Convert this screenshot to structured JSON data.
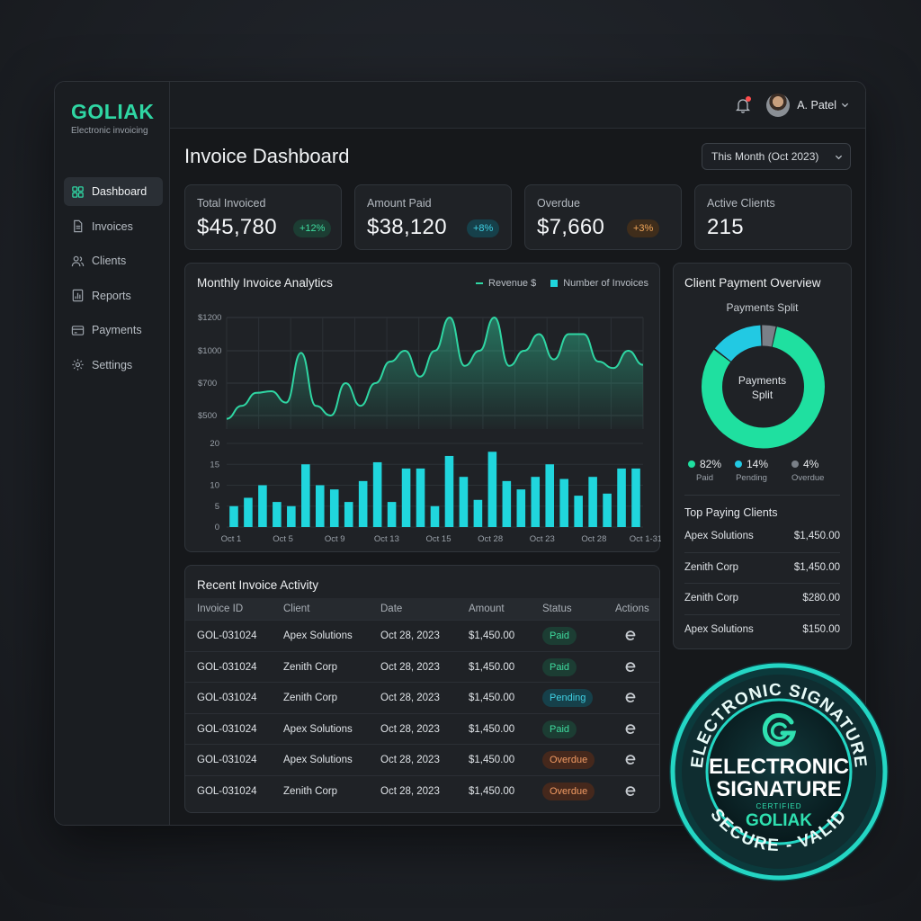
{
  "brand": {
    "name": "GOLIAK",
    "tagline": "Electronic invoicing"
  },
  "nav": [
    {
      "label": "Dashboard",
      "icon": "grid-icon",
      "active": true
    },
    {
      "label": "Invoices",
      "icon": "document-icon"
    },
    {
      "label": "Clients",
      "icon": "users-icon"
    },
    {
      "label": "Reports",
      "icon": "bar-chart-icon"
    },
    {
      "label": "Payments",
      "icon": "card-icon"
    },
    {
      "label": "Settings",
      "icon": "gear-icon"
    }
  ],
  "topbar": {
    "user_name": "A. Patel"
  },
  "page": {
    "title": "Invoice Dashboard",
    "range": "This Month (Oct 2023)"
  },
  "kpis": [
    {
      "label": "Total Invoiced",
      "value": "$45,780",
      "badge": "+12%"
    },
    {
      "label": "Amount Paid",
      "value": "$38,120",
      "badge": "+8%"
    },
    {
      "label": "Overdue",
      "value": "$7,660",
      "badge": "+3%"
    },
    {
      "label": "Active Clients",
      "value": "215"
    }
  ],
  "analytics": {
    "title": "Monthly Invoice Analytics",
    "legend_revenue": "Revenue $",
    "legend_invoices": "Number of Invoices"
  },
  "chart_data": {
    "type": "area+bar",
    "title": "Monthly Invoice Analytics",
    "revenue": {
      "name": "Revenue $",
      "y_ticks": [
        "$500",
        "$700",
        "$1000",
        "$1200"
      ],
      "values": [
        480,
        560,
        640,
        650,
        580,
        980,
        560,
        500,
        700,
        560,
        700,
        900,
        1000,
        760,
        1000,
        1200,
        860,
        1000,
        1200,
        860,
        1000,
        1100,
        920,
        1100,
        1100,
        900,
        840,
        1000,
        870
      ]
    },
    "invoices": {
      "name": "Number of Invoices",
      "y_ticks": [
        "0",
        "5",
        "10",
        "15",
        "20"
      ],
      "ylim": [
        0,
        20
      ],
      "values": [
        5,
        7,
        10,
        6,
        5,
        15,
        10,
        9,
        6,
        11,
        15.5,
        6,
        14,
        14,
        5,
        17,
        12,
        6.5,
        18,
        11,
        9,
        12,
        15,
        11.5,
        7.5,
        12,
        8,
        14,
        14
      ]
    },
    "x_ticks": [
      "Oct 1",
      "Oct 5",
      "Oct 9",
      "Oct 13",
      "Oct 15",
      "Oct 28",
      "Oct 23",
      "Oct 28",
      "Oct 1-31"
    ]
  },
  "activity": {
    "title": "Recent Invoice Activity",
    "columns": [
      "Invoice ID",
      "Client",
      "Date",
      "Amount",
      "Status",
      "Actions"
    ],
    "rows": [
      {
        "id": "GOL-031024",
        "client": "Apex Solutions",
        "date": "Oct 28, 2023",
        "amount": "$1,450.00",
        "status": "Paid"
      },
      {
        "id": "GOL-031024",
        "client": "Zenith Corp",
        "date": "Oct 28, 2023",
        "amount": "$1,450.00",
        "status": "Paid"
      },
      {
        "id": "GOL-031024",
        "client": "Zenith Corp",
        "date": "Oct 28, 2023",
        "amount": "$1,450.00",
        "status": "Pending"
      },
      {
        "id": "GOL-031024",
        "client": "Apex Solutions",
        "date": "Oct 28, 2023",
        "amount": "$1,450.00",
        "status": "Paid"
      },
      {
        "id": "GOL-031024",
        "client": "Apex Solutions",
        "date": "Oct 28, 2023",
        "amount": "$1,450.00",
        "status": "Overdue"
      },
      {
        "id": "GOL-031024",
        "client": "Zenith Corp",
        "date": "Oct 28, 2023",
        "amount": "$1,450.00",
        "status": "Overdue"
      }
    ]
  },
  "overview": {
    "title": "Client Payment Overview",
    "subtitle": "Payments Split",
    "center_line1": "Payments",
    "center_line2": "Split",
    "split": [
      {
        "pct": "82%",
        "label": "Paid",
        "value": 82,
        "color": "#1fe0a0"
      },
      {
        "pct": "14%",
        "label": "Pending",
        "value": 14,
        "color": "#22c9e3"
      },
      {
        "pct": "4%",
        "label": "Overdue",
        "value": 4,
        "color": "#7a8088"
      }
    ],
    "top_title": "Top Paying Clients",
    "top_clients": [
      {
        "name": "Apex Solutions",
        "amount": "$1,450.00"
      },
      {
        "name": "Zenith Corp",
        "amount": "$1,450.00"
      },
      {
        "name": "Zenith Corp",
        "amount": "$280.00"
      },
      {
        "name": "Apex Solutions",
        "amount": "$150.00"
      }
    ]
  },
  "seal": {
    "arc_top": "ELECTRONIC SIGNATURE",
    "arc_bottom": "SECURE - VALID",
    "line1": "ELECTRONIC",
    "line2": "SIGNATURE",
    "certified": "CERTIFIED",
    "brand": "GOLIAK"
  },
  "colors": {
    "accent": "#2fd6a3",
    "teal": "#20d6dd",
    "background": "#16181b"
  }
}
